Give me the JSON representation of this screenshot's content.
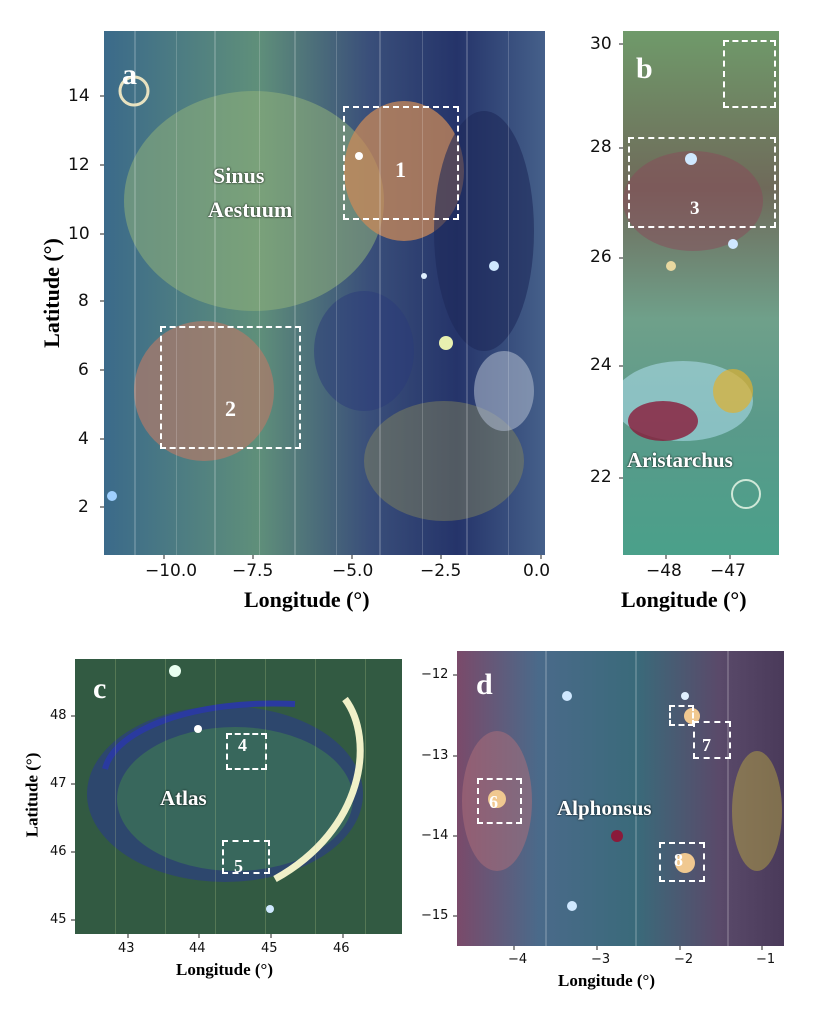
{
  "panels": {
    "a": {
      "letter": "a",
      "region_label_line1": "Sinus",
      "region_label_line2": "Aestuum",
      "box_labels": [
        "1",
        "2"
      ],
      "y_ticks": [
        "14",
        "12",
        "10",
        "8",
        "6",
        "4",
        "2"
      ],
      "x_ticks": [
        "−10.0",
        "−7.5",
        "−5.0",
        "−2.5",
        "0.0"
      ],
      "xlabel": "Longitude (°)",
      "ylabel": "Latitude (°)"
    },
    "b": {
      "letter": "b",
      "region_label": "Aristarchus",
      "box_labels": [
        "3"
      ],
      "y_ticks": [
        "30",
        "28",
        "26",
        "24",
        "22"
      ],
      "x_ticks": [
        "−48",
        "−47"
      ],
      "xlabel": "Longitude (°)"
    },
    "c": {
      "letter": "c",
      "region_label": "Atlas",
      "box_labels": [
        "4",
        "5"
      ],
      "y_ticks": [
        "48",
        "47",
        "46",
        "45"
      ],
      "x_ticks": [
        "43",
        "44",
        "45",
        "46"
      ],
      "xlabel": "Longitude (°)",
      "ylabel": "Latitude (°)"
    },
    "d": {
      "letter": "d",
      "region_label": "Alphonsus",
      "box_labels": [
        "6",
        "7",
        "8"
      ],
      "y_ticks": [
        "−12",
        "−13",
        "−14",
        "−15"
      ],
      "x_ticks": [
        "−4",
        "−3",
        "−2",
        "−1"
      ],
      "xlabel": "Longitude (°)"
    }
  }
}
